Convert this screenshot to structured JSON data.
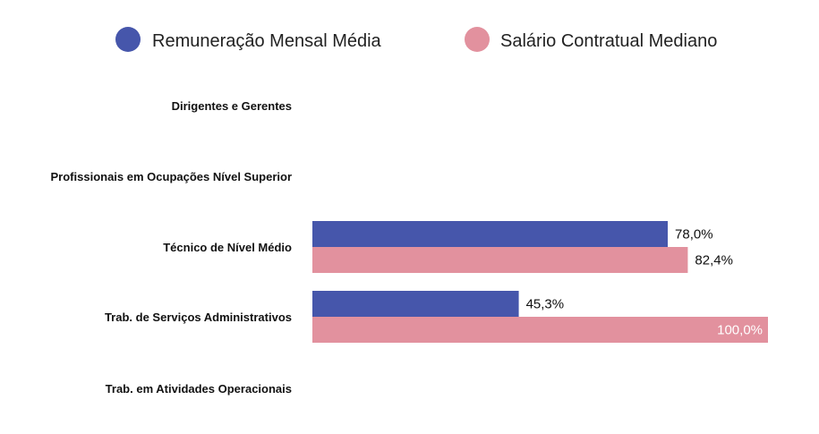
{
  "chart_data": {
    "type": "bar",
    "orientation": "horizontal",
    "categories": [
      "Dirigentes e Gerentes",
      "Profissionais em Ocupações Nível Superior",
      "Técnico de Nível Médio",
      "Trab. de Serviços Administrativos",
      "Trab. em Atividades Operacionais"
    ],
    "series": [
      {
        "name": "Remuneração Mensal Média",
        "color": "#4656ab",
        "values": [
          null,
          null,
          78.0,
          45.3,
          null
        ],
        "labels": [
          "",
          "",
          "78,0%",
          "45,3%",
          ""
        ]
      },
      {
        "name": "Salário Contratual Mediano",
        "color": "#e2919e",
        "values": [
          null,
          null,
          82.4,
          100.0,
          null
        ],
        "labels": [
          "",
          "",
          "82,4%",
          "100,0%",
          ""
        ]
      }
    ],
    "xlim": [
      0,
      100
    ],
    "grid": false,
    "legend_position": "top"
  }
}
